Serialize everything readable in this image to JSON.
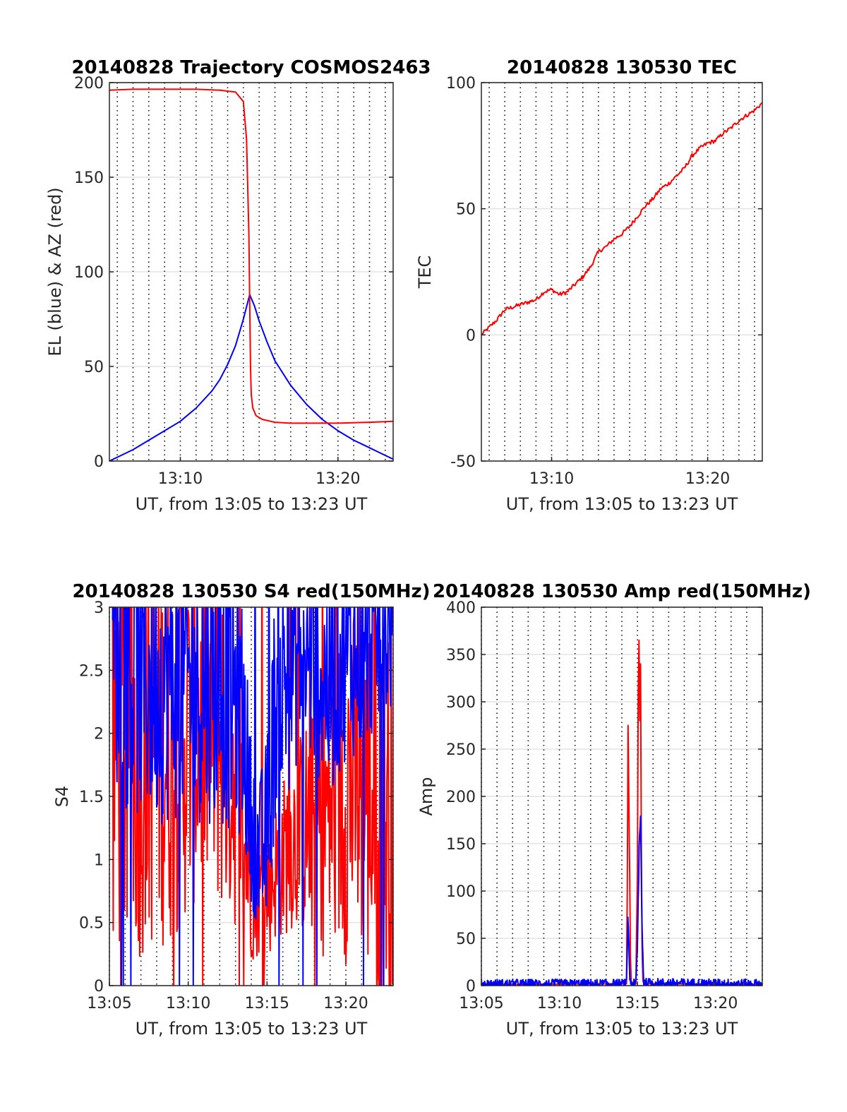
{
  "chart_data": [
    {
      "id": "trajectory",
      "type": "line",
      "title": "20140828 Trajectory COSMOS2463",
      "xlabel": "UT, from 13:05 to 13:23 UT",
      "ylabel": "EL (blue) & AZ (red)",
      "xlim": [
        5.5,
        23.5
      ],
      "ylim": [
        0,
        200
      ],
      "xticks": [
        {
          "v": 10,
          "label": "13:10"
        },
        {
          "v": 20,
          "label": "13:20"
        }
      ],
      "yticks": [
        {
          "v": 0,
          "label": "0"
        },
        {
          "v": 50,
          "label": "50"
        },
        {
          "v": 100,
          "label": "100"
        },
        {
          "v": 150,
          "label": "150"
        },
        {
          "v": 200,
          "label": "200"
        }
      ],
      "grid": true,
      "series": [
        {
          "color": "#0000ff",
          "kind": "el",
          "x": [
            5.5,
            6,
            7,
            8,
            9,
            10,
            11,
            12,
            12.5,
            13,
            13.5,
            14,
            14.4,
            14.7,
            15,
            15.5,
            16,
            17,
            18,
            19,
            20,
            21,
            22,
            23,
            23.5
          ],
          "y": [
            0,
            2,
            6,
            11,
            16,
            21,
            28,
            37,
            43,
            51,
            61,
            75,
            88,
            82,
            74,
            63,
            53,
            40,
            30,
            22,
            16,
            11,
            7,
            3,
            1
          ]
        },
        {
          "color": "#ff0000",
          "kind": "az",
          "x": [
            5.5,
            7,
            9,
            11,
            12.5,
            13.5,
            14,
            14.2,
            14.35,
            14.45,
            14.5,
            14.6,
            14.8,
            15.2,
            16,
            17,
            18,
            20,
            22,
            23.5
          ],
          "y": [
            196,
            196.5,
            196.5,
            196.5,
            196,
            195,
            190,
            170,
            120,
            50,
            35,
            28,
            24,
            22,
            20.5,
            20,
            20,
            20,
            20.5,
            21
          ]
        }
      ]
    },
    {
      "id": "tec",
      "type": "line",
      "title": "20140828 130530 TEC",
      "xlabel": "UT, from 13:05 to 13:23 UT",
      "ylabel": "TEC",
      "xlim": [
        5.5,
        23.5
      ],
      "ylim": [
        -50,
        100
      ],
      "xticks": [
        {
          "v": 10,
          "label": "13:10"
        },
        {
          "v": 20,
          "label": "13:20"
        }
      ],
      "yticks": [
        {
          "v": -50,
          "label": "-50"
        },
        {
          "v": 0,
          "label": "0"
        },
        {
          "v": 50,
          "label": "50"
        },
        {
          "v": 100,
          "label": "100"
        }
      ],
      "grid": true,
      "series": [
        {
          "color": "#ff0000",
          "kind": "line",
          "x": [
            5.5,
            6,
            6.5,
            7,
            7.5,
            8,
            8.5,
            9,
            9.5,
            10,
            10.5,
            11,
            11.5,
            12,
            12.5,
            13,
            13.5,
            14,
            14.5,
            15,
            15.5,
            16,
            16.5,
            17,
            17.5,
            18,
            18.5,
            19,
            19.5,
            20,
            20.5,
            21,
            21.5,
            22,
            22.5,
            23,
            23.5
          ],
          "y": [
            0,
            3,
            6,
            10,
            11,
            12,
            13,
            14,
            17,
            18,
            16,
            17,
            20,
            23,
            27,
            33,
            35,
            38,
            40,
            43,
            47,
            51,
            54,
            58,
            60,
            63,
            66,
            71,
            74,
            76,
            77,
            80,
            82,
            85,
            87,
            89,
            92
          ]
        }
      ]
    },
    {
      "id": "s4",
      "type": "line",
      "title": "20140828 130530 S4 red(150MHz)",
      "xlabel": "UT, from 13:05 to 13:23 UT",
      "ylabel": "S4",
      "xlim": [
        5,
        23
      ],
      "ylim": [
        0,
        3
      ],
      "xticks": [
        {
          "v": 5,
          "label": "13:05"
        },
        {
          "v": 10,
          "label": "13:10"
        },
        {
          "v": 15,
          "label": "13:15"
        },
        {
          "v": 20,
          "label": "13:20"
        }
      ],
      "yticks": [
        {
          "v": 0,
          "label": "0"
        },
        {
          "v": 0.5,
          "label": "0.5"
        },
        {
          "v": 1,
          "label": "1"
        },
        {
          "v": 1.5,
          "label": "1.5"
        },
        {
          "v": 2,
          "label": "2"
        },
        {
          "v": 2.5,
          "label": "2.5"
        },
        {
          "v": 3,
          "label": "3"
        }
      ],
      "grid": true,
      "series": [
        {
          "color": "#ff0000",
          "kind": "noise",
          "step": 0.04,
          "x": [
            5.2,
            6,
            7,
            8,
            9,
            10,
            11,
            12,
            13,
            13.5,
            14,
            14.5,
            15,
            15.5,
            16,
            16.5,
            17,
            18,
            19,
            20,
            21,
            22,
            23
          ],
          "y": [
            2.2,
            2.0,
            1.8,
            1.9,
            1.9,
            2.0,
            2.1,
            2.0,
            1.7,
            1.2,
            0.75,
            0.7,
            0.75,
            0.9,
            1.0,
            1.15,
            1.2,
            1.3,
            1.4,
            1.6,
            1.6,
            1.4,
            1.4
          ],
          "amp": [
            1.2,
            1.2,
            1.0,
            1.0,
            1.0,
            0.9,
            0.9,
            0.9,
            0.8,
            0.5,
            0.35,
            0.3,
            0.35,
            0.35,
            0.4,
            0.45,
            0.5,
            0.6,
            0.8,
            0.9,
            0.9,
            1.0,
            1.0
          ]
        },
        {
          "color": "#0000ff",
          "kind": "noise",
          "step": 0.04,
          "x": [
            5.2,
            6,
            7,
            8,
            9,
            10,
            11,
            12,
            13,
            13.5,
            14,
            14.5,
            15,
            15.5,
            16,
            16.5,
            17,
            18,
            19,
            20,
            21,
            22,
            23
          ],
          "y": [
            2.6,
            2.5,
            2.4,
            2.4,
            2.4,
            2.4,
            2.4,
            2.4,
            2.3,
            2.1,
            1.3,
            1.0,
            1.2,
            2.2,
            2.4,
            2.5,
            2.6,
            2.5,
            2.4,
            2.6,
            2.6,
            2.7,
            2.8
          ],
          "amp": [
            0.6,
            0.7,
            0.7,
            0.7,
            0.7,
            0.7,
            0.7,
            0.7,
            0.7,
            0.6,
            0.4,
            0.4,
            0.5,
            0.6,
            0.6,
            0.6,
            0.5,
            0.5,
            0.6,
            0.5,
            0.5,
            0.4,
            0.4
          ]
        }
      ]
    },
    {
      "id": "amp",
      "type": "line",
      "title": "20140828 130530 Amp red(150MHz)",
      "xlabel": "UT, from 13:05 to 13:23 UT",
      "ylabel": "Amp",
      "xlim": [
        5,
        23
      ],
      "ylim": [
        0,
        400
      ],
      "xticks": [
        {
          "v": 5,
          "label": "13:05"
        },
        {
          "v": 10,
          "label": "13:10"
        },
        {
          "v": 15,
          "label": "13:15"
        },
        {
          "v": 20,
          "label": "13:20"
        }
      ],
      "yticks": [
        {
          "v": 0,
          "label": "0"
        },
        {
          "v": 50,
          "label": "50"
        },
        {
          "v": 100,
          "label": "100"
        },
        {
          "v": 150,
          "label": "150"
        },
        {
          "v": 200,
          "label": "200"
        },
        {
          "v": 250,
          "label": "250"
        },
        {
          "v": 300,
          "label": "300"
        },
        {
          "v": 350,
          "label": "350"
        },
        {
          "v": 400,
          "label": "400"
        }
      ],
      "grid": true,
      "series": [
        {
          "color": "#ff0000",
          "kind": "line",
          "x": [
            5,
            14.3,
            14.35,
            14.4,
            14.45,
            14.5,
            14.55,
            14.6,
            14.65,
            14.7,
            14.8,
            14.9,
            15.0,
            15.05,
            15.1,
            15.15,
            15.2,
            15.25,
            15.3,
            15.35,
            15.4,
            23
          ],
          "y": [
            1,
            2,
            100,
            275,
            200,
            120,
            30,
            5,
            2,
            2,
            3,
            2,
            120,
            310,
            365,
            280,
            340,
            150,
            40,
            5,
            2,
            1
          ]
        },
        {
          "color": "#0000ff",
          "kind": "noise",
          "step": 0.03,
          "x": [
            5,
            14.3,
            14.4,
            14.45,
            14.5,
            14.6,
            14.9,
            15.0,
            15.1,
            15.2,
            15.3,
            15.4,
            23
          ],
          "y": [
            2,
            2,
            80,
            40,
            10,
            2,
            2,
            40,
            140,
            175,
            60,
            3,
            2
          ],
          "amp": [
            3,
            3,
            5,
            5,
            5,
            3,
            3,
            5,
            10,
            10,
            8,
            3,
            3
          ]
        }
      ]
    }
  ]
}
